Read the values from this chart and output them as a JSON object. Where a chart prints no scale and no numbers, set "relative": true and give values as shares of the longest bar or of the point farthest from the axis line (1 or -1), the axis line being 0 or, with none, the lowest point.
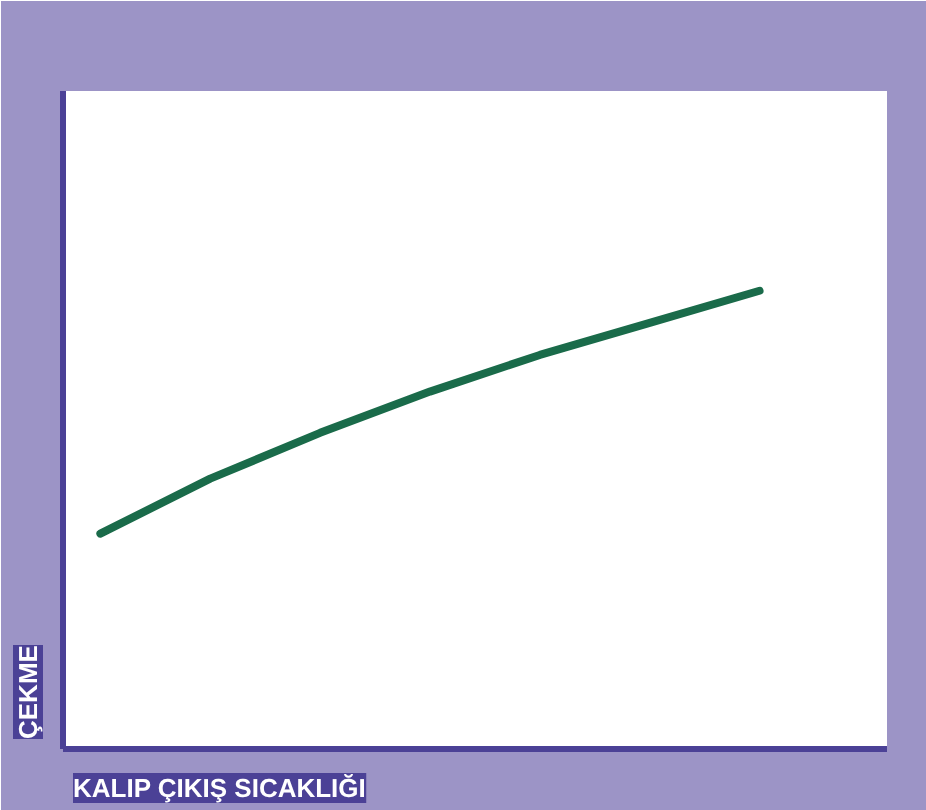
{
  "chart_data": {
    "type": "line",
    "relative": true,
    "xlabel": "KALIP ÇIKIŞ SICAKLIĞI",
    "ylabel": "ÇEKME",
    "categories": [
      null,
      null,
      null,
      null,
      null,
      null,
      null
    ],
    "series": [
      {
        "color": "#1a6b4a",
        "values": [
          0.47,
          0.59,
          0.69,
          0.78,
          0.86,
          0.93,
          1.0
        ]
      }
    ],
    "grid": false,
    "marker": "none",
    "line_style": "solid"
  }
}
